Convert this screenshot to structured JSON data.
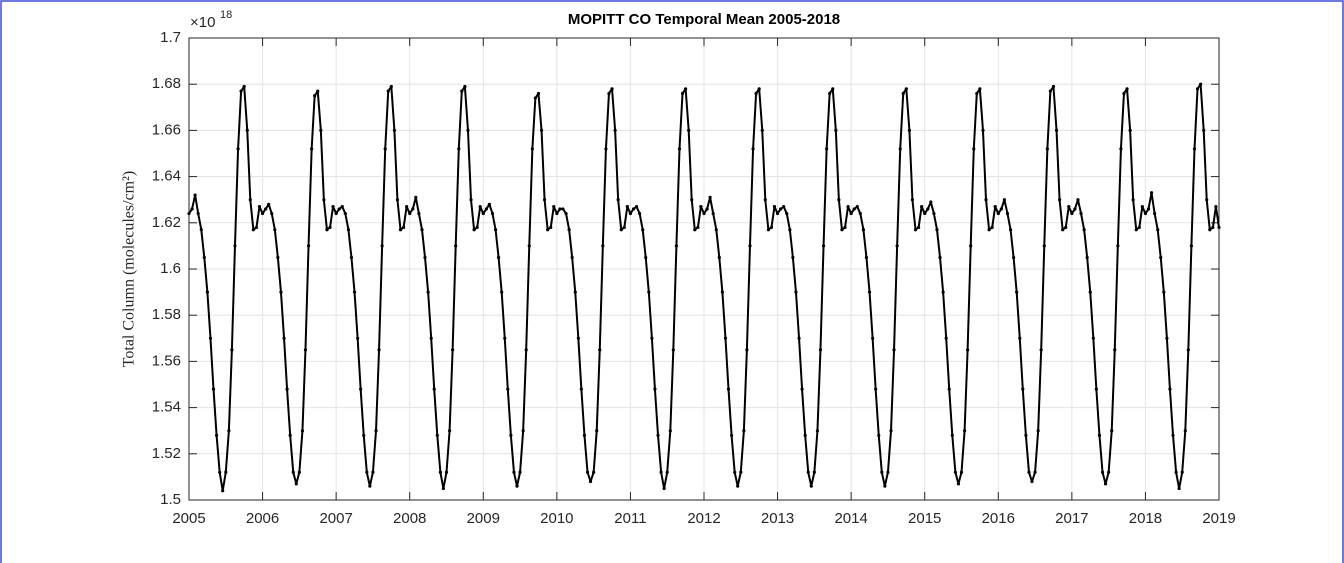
{
  "chart_data": {
    "type": "line",
    "title": "MOPITT CO Temporal Mean 2005-2018",
    "ylabel": "Total Column (molecules/cm²)",
    "y_multiplier": {
      "base": "×10",
      "exponent": "18"
    },
    "xlim": [
      2005,
      2019
    ],
    "xticks": [
      2005,
      2006,
      2007,
      2008,
      2009,
      2010,
      2011,
      2012,
      2013,
      2014,
      2015,
      2016,
      2017,
      2018,
      2019
    ],
    "ylim": [
      1.5,
      1.7
    ],
    "yticks": [
      1.5,
      1.52,
      1.54,
      1.56,
      1.58,
      1.6,
      1.62,
      1.64,
      1.66,
      1.68,
      1.7
    ],
    "grid": true,
    "series": [
      {
        "color": "#000000",
        "x": [
          2005,
          2005.042,
          2005.083,
          2005.125,
          2005.167,
          2005.208,
          2005.25,
          2005.292,
          2005.333,
          2005.375,
          2005.417,
          2005.458,
          2005.5,
          2005.542,
          2005.583,
          2005.625,
          2005.667,
          2005.708,
          2005.75,
          2005.792,
          2005.833,
          2005.875,
          2005.917,
          2005.958,
          2006,
          2006.042,
          2006.083,
          2006.125,
          2006.167,
          2006.208,
          2006.25,
          2006.292,
          2006.333,
          2006.375,
          2006.417,
          2006.458,
          2006.5,
          2006.542,
          2006.583,
          2006.625,
          2006.667,
          2006.708,
          2006.75,
          2006.792,
          2006.833,
          2006.875,
          2006.917,
          2006.958,
          2007,
          2007.042,
          2007.083,
          2007.125,
          2007.167,
          2007.208,
          2007.25,
          2007.292,
          2007.333,
          2007.375,
          2007.417,
          2007.458,
          2007.5,
          2007.542,
          2007.583,
          2007.625,
          2007.667,
          2007.708,
          2007.75,
          2007.792,
          2007.833,
          2007.875,
          2007.917,
          2007.958,
          2008,
          2008.042,
          2008.083,
          2008.125,
          2008.167,
          2008.208,
          2008.25,
          2008.292,
          2008.333,
          2008.375,
          2008.417,
          2008.458,
          2008.5,
          2008.542,
          2008.583,
          2008.625,
          2008.667,
          2008.708,
          2008.75,
          2008.792,
          2008.833,
          2008.875,
          2008.917,
          2008.958,
          2009,
          2009.042,
          2009.083,
          2009.125,
          2009.167,
          2009.208,
          2009.25,
          2009.292,
          2009.333,
          2009.375,
          2009.417,
          2009.458,
          2009.5,
          2009.542,
          2009.583,
          2009.625,
          2009.667,
          2009.708,
          2009.75,
          2009.792,
          2009.833,
          2009.875,
          2009.917,
          2009.958,
          2010,
          2010.042,
          2010.083,
          2010.125,
          2010.167,
          2010.208,
          2010.25,
          2010.292,
          2010.333,
          2010.375,
          2010.417,
          2010.458,
          2010.5,
          2010.542,
          2010.583,
          2010.625,
          2010.667,
          2010.708,
          2010.75,
          2010.792,
          2010.833,
          2010.875,
          2010.917,
          2010.958,
          2011,
          2011.042,
          2011.083,
          2011.125,
          2011.167,
          2011.208,
          2011.25,
          2011.292,
          2011.333,
          2011.375,
          2011.417,
          2011.458,
          2011.5,
          2011.542,
          2011.583,
          2011.625,
          2011.667,
          2011.708,
          2011.75,
          2011.792,
          2011.833,
          2011.875,
          2011.917,
          2011.958,
          2012,
          2012.042,
          2012.083,
          2012.125,
          2012.167,
          2012.208,
          2012.25,
          2012.292,
          2012.333,
          2012.375,
          2012.417,
          2012.458,
          2012.5,
          2012.542,
          2012.583,
          2012.625,
          2012.667,
          2012.708,
          2012.75,
          2012.792,
          2012.833,
          2012.875,
          2012.917,
          2012.958,
          2013,
          2013.042,
          2013.083,
          2013.125,
          2013.167,
          2013.208,
          2013.25,
          2013.292,
          2013.333,
          2013.375,
          2013.417,
          2013.458,
          2013.5,
          2013.542,
          2013.583,
          2013.625,
          2013.667,
          2013.708,
          2013.75,
          2013.792,
          2013.833,
          2013.875,
          2013.917,
          2013.958,
          2014,
          2014.042,
          2014.083,
          2014.125,
          2014.167,
          2014.208,
          2014.25,
          2014.292,
          2014.333,
          2014.375,
          2014.417,
          2014.458,
          2014.5,
          2014.542,
          2014.583,
          2014.625,
          2014.667,
          2014.708,
          2014.75,
          2014.792,
          2014.833,
          2014.875,
          2014.917,
          2014.958,
          2015,
          2015.042,
          2015.083,
          2015.125,
          2015.167,
          2015.208,
          2015.25,
          2015.292,
          2015.333,
          2015.375,
          2015.417,
          2015.458,
          2015.5,
          2015.542,
          2015.583,
          2015.625,
          2015.667,
          2015.708,
          2015.75,
          2015.792,
          2015.833,
          2015.875,
          2015.917,
          2015.958,
          2016,
          2016.042,
          2016.083,
          2016.125,
          2016.167,
          2016.208,
          2016.25,
          2016.292,
          2016.333,
          2016.375,
          2016.417,
          2016.458,
          2016.5,
          2016.542,
          2016.583,
          2016.625,
          2016.667,
          2016.708,
          2016.75,
          2016.792,
          2016.833,
          2016.875,
          2016.917,
          2016.958,
          2017,
          2017.042,
          2017.083,
          2017.125,
          2017.167,
          2017.208,
          2017.25,
          2017.292,
          2017.333,
          2017.375,
          2017.417,
          2017.458,
          2017.5,
          2017.542,
          2017.583,
          2017.625,
          2017.667,
          2017.708,
          2017.75,
          2017.792,
          2017.833,
          2017.875,
          2017.917,
          2017.958,
          2018,
          2018.042,
          2018.083,
          2018.125,
          2018.167,
          2018.208,
          2018.25,
          2018.292,
          2018.333,
          2018.375,
          2018.417,
          2018.458,
          2018.5,
          2018.542,
          2018.583,
          2018.625,
          2018.667,
          2018.708,
          2018.75,
          2018.792,
          2018.833,
          2018.875,
          2018.917,
          2018.958,
          2019
        ],
        "values": [
          1.624,
          1.626,
          1.632,
          1.624,
          1.617,
          1.605,
          1.59,
          1.57,
          1.548,
          1.528,
          1.512,
          1.504,
          1.512,
          1.53,
          1.565,
          1.61,
          1.652,
          1.677,
          1.679,
          1.66,
          1.63,
          1.617,
          1.618,
          1.627,
          1.624,
          1.626,
          1.628,
          1.624,
          1.617,
          1.605,
          1.59,
          1.57,
          1.548,
          1.528,
          1.512,
          1.507,
          1.512,
          1.53,
          1.565,
          1.61,
          1.652,
          1.675,
          1.677,
          1.66,
          1.63,
          1.617,
          1.618,
          1.627,
          1.624,
          1.626,
          1.627,
          1.624,
          1.617,
          1.605,
          1.59,
          1.57,
          1.548,
          1.528,
          1.512,
          1.506,
          1.512,
          1.53,
          1.565,
          1.61,
          1.652,
          1.677,
          1.679,
          1.66,
          1.63,
          1.617,
          1.618,
          1.627,
          1.624,
          1.626,
          1.631,
          1.624,
          1.617,
          1.605,
          1.59,
          1.57,
          1.548,
          1.528,
          1.512,
          1.505,
          1.512,
          1.53,
          1.565,
          1.61,
          1.652,
          1.677,
          1.679,
          1.66,
          1.63,
          1.617,
          1.618,
          1.627,
          1.624,
          1.626,
          1.628,
          1.624,
          1.617,
          1.605,
          1.59,
          1.57,
          1.548,
          1.528,
          1.512,
          1.506,
          1.512,
          1.53,
          1.565,
          1.61,
          1.652,
          1.674,
          1.676,
          1.66,
          1.63,
          1.617,
          1.618,
          1.627,
          1.624,
          1.626,
          1.626,
          1.624,
          1.617,
          1.605,
          1.59,
          1.57,
          1.548,
          1.528,
          1.512,
          1.508,
          1.512,
          1.53,
          1.565,
          1.61,
          1.652,
          1.676,
          1.678,
          1.66,
          1.63,
          1.617,
          1.618,
          1.627,
          1.624,
          1.626,
          1.627,
          1.624,
          1.617,
          1.605,
          1.59,
          1.57,
          1.548,
          1.528,
          1.512,
          1.505,
          1.512,
          1.53,
          1.565,
          1.61,
          1.652,
          1.676,
          1.678,
          1.66,
          1.63,
          1.617,
          1.618,
          1.627,
          1.624,
          1.626,
          1.631,
          1.624,
          1.617,
          1.605,
          1.59,
          1.57,
          1.548,
          1.528,
          1.512,
          1.506,
          1.512,
          1.53,
          1.565,
          1.61,
          1.652,
          1.676,
          1.678,
          1.66,
          1.63,
          1.617,
          1.618,
          1.627,
          1.624,
          1.626,
          1.627,
          1.624,
          1.617,
          1.605,
          1.59,
          1.57,
          1.548,
          1.528,
          1.512,
          1.506,
          1.512,
          1.53,
          1.565,
          1.61,
          1.652,
          1.676,
          1.678,
          1.66,
          1.63,
          1.617,
          1.618,
          1.627,
          1.624,
          1.626,
          1.627,
          1.624,
          1.617,
          1.605,
          1.59,
          1.57,
          1.548,
          1.528,
          1.512,
          1.506,
          1.512,
          1.53,
          1.565,
          1.61,
          1.652,
          1.676,
          1.678,
          1.66,
          1.63,
          1.617,
          1.618,
          1.627,
          1.624,
          1.626,
          1.629,
          1.624,
          1.617,
          1.605,
          1.59,
          1.57,
          1.548,
          1.528,
          1.512,
          1.507,
          1.512,
          1.53,
          1.565,
          1.61,
          1.652,
          1.676,
          1.678,
          1.66,
          1.63,
          1.617,
          1.618,
          1.627,
          1.624,
          1.626,
          1.63,
          1.624,
          1.617,
          1.605,
          1.59,
          1.57,
          1.548,
          1.528,
          1.512,
          1.508,
          1.512,
          1.53,
          1.565,
          1.61,
          1.652,
          1.677,
          1.679,
          1.66,
          1.63,
          1.617,
          1.618,
          1.627,
          1.624,
          1.626,
          1.63,
          1.624,
          1.617,
          1.605,
          1.59,
          1.57,
          1.548,
          1.528,
          1.512,
          1.507,
          1.512,
          1.53,
          1.565,
          1.61,
          1.652,
          1.676,
          1.678,
          1.66,
          1.63,
          1.617,
          1.618,
          1.627,
          1.624,
          1.626,
          1.633,
          1.624,
          1.617,
          1.605,
          1.59,
          1.57,
          1.548,
          1.528,
          1.512,
          1.505,
          1.512,
          1.53,
          1.565,
          1.61,
          1.652,
          1.678,
          1.68,
          1.66,
          1.63,
          1.617,
          1.618,
          1.627,
          1.618
        ]
      }
    ]
  }
}
